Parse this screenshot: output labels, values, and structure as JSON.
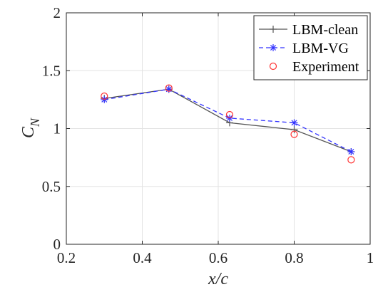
{
  "chart_data": {
    "type": "line",
    "title": "",
    "xlabel": "x/c",
    "ylabel": "C",
    "ylabel_subscript": "N",
    "xlim": [
      0.2,
      1
    ],
    "ylim": [
      0,
      2
    ],
    "xticks": [
      0.2,
      0.4,
      0.6,
      0.8,
      1
    ],
    "xtick_labels": [
      "0.2",
      "0.4",
      "0.6",
      "0.8",
      "1"
    ],
    "yticks": [
      0,
      0.5,
      1,
      1.5,
      2
    ],
    "ytick_labels": [
      "0",
      "0.5",
      "1",
      "1.5",
      "2"
    ],
    "grid": true,
    "legend_position": "top-right",
    "series": [
      {
        "name": "LBM-clean",
        "style": "solid",
        "marker": "plus",
        "color": "#555555",
        "x": [
          0.3,
          0.47,
          0.63,
          0.8,
          0.95
        ],
        "y": [
          1.26,
          1.34,
          1.05,
          0.99,
          0.8
        ]
      },
      {
        "name": "LBM-VG",
        "style": "dashed",
        "marker": "asterisk",
        "color": "#3333ff",
        "x": [
          0.3,
          0.47,
          0.63,
          0.8,
          0.95
        ],
        "y": [
          1.25,
          1.34,
          1.09,
          1.05,
          0.8
        ]
      },
      {
        "name": "Experiment",
        "style": "none",
        "marker": "circle",
        "color": "#ff3333",
        "x": [
          0.3,
          0.47,
          0.63,
          0.8,
          0.95
        ],
        "y": [
          1.28,
          1.35,
          1.12,
          0.95,
          0.73
        ]
      }
    ]
  }
}
